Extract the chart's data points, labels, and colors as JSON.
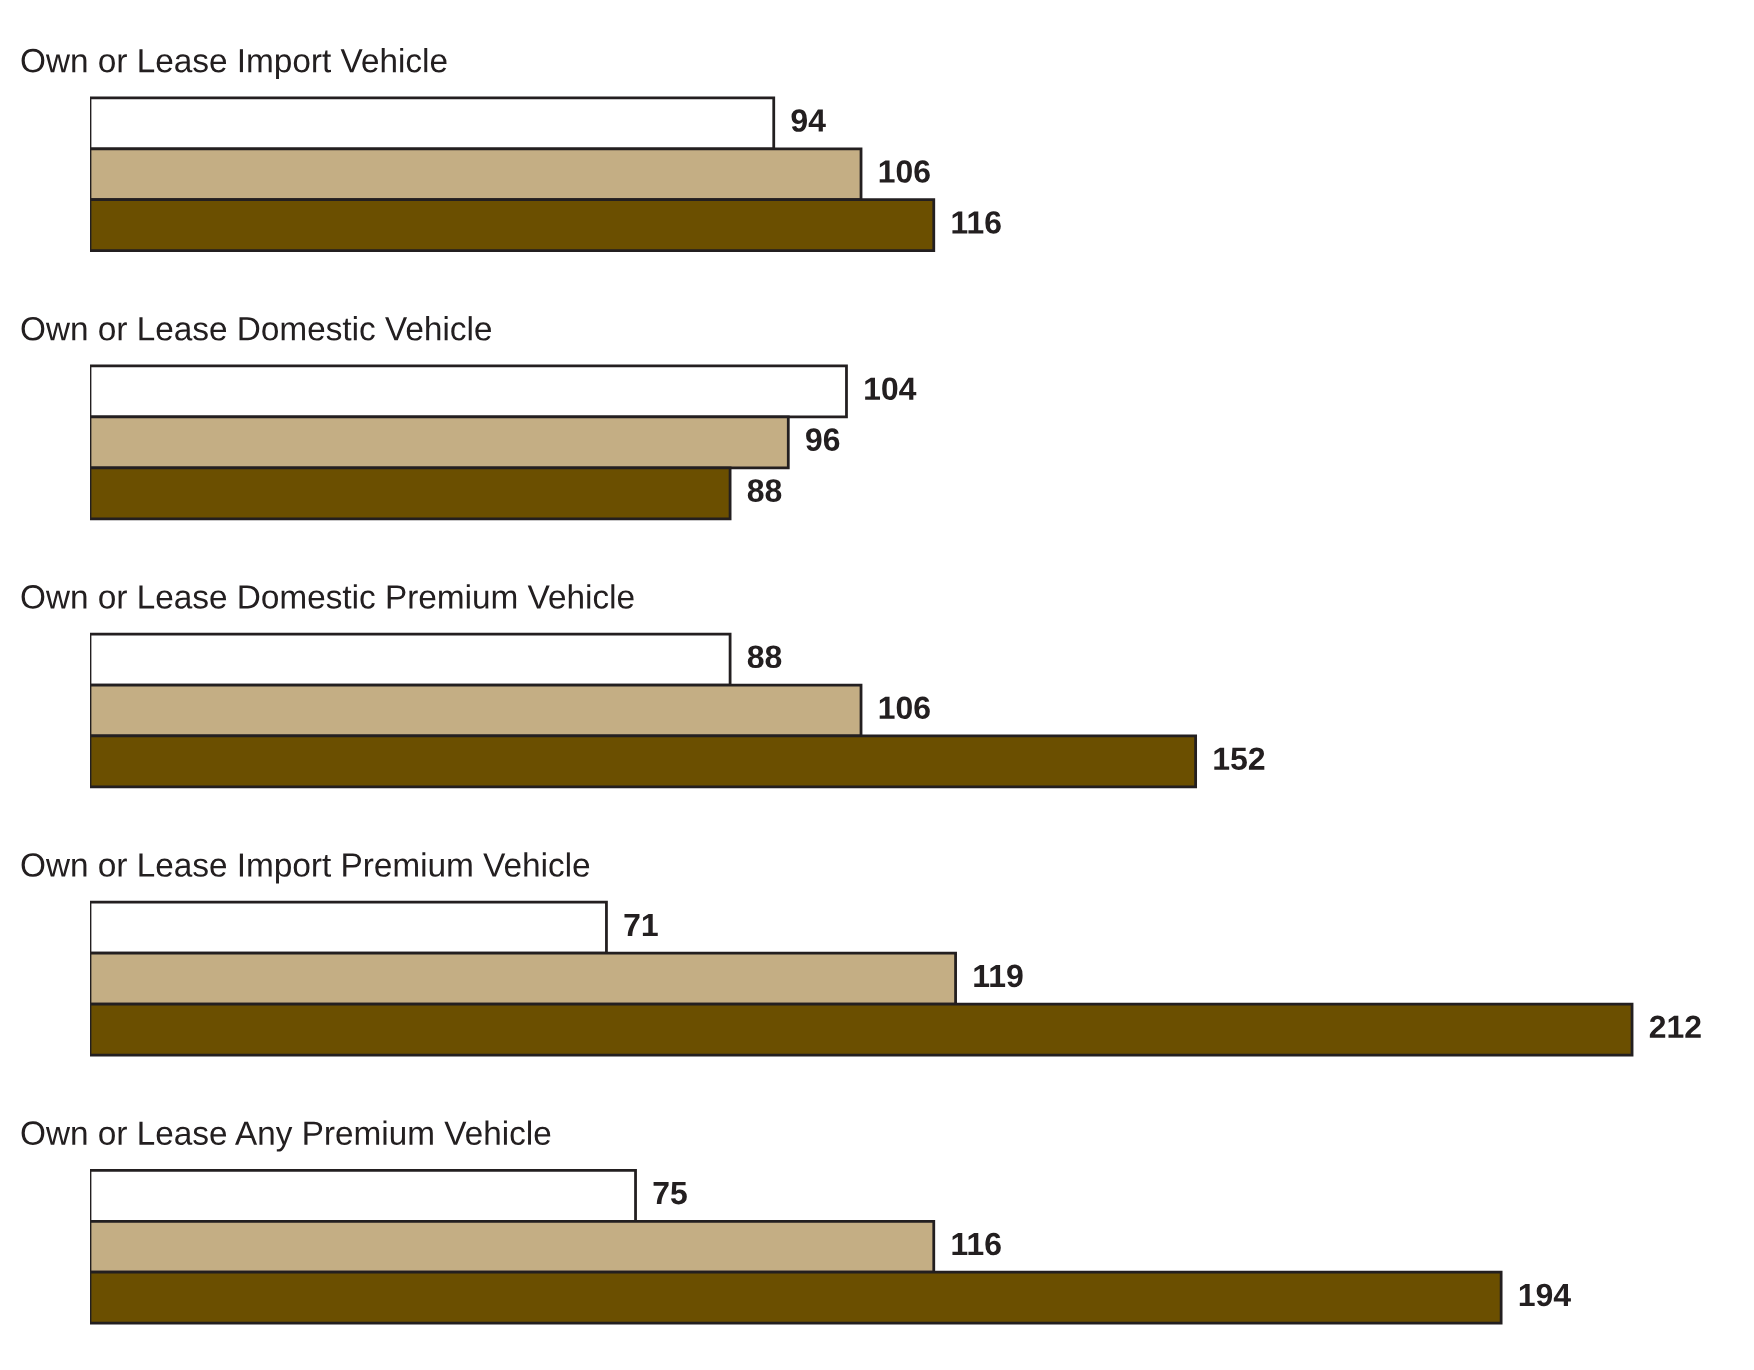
{
  "chart_data": {
    "type": "bar",
    "orientation": "horizontal",
    "categories": [
      "Own or Lease Import Vehicle",
      "Own or Lease Domestic Vehicle",
      "Own or Lease Domestic Premium Vehicle",
      "Own or Lease Import Premium Vehicle",
      "Own or Lease Any Premium Vehicle"
    ],
    "series": [
      {
        "color": "#ffffff",
        "values": [
          94,
          104,
          88,
          71,
          75
        ]
      },
      {
        "color": "#c4ae84",
        "values": [
          106,
          96,
          106,
          119,
          116
        ]
      },
      {
        "color": "#6b4f00",
        "values": [
          116,
          88,
          152,
          212,
          194
        ]
      }
    ],
    "data_labels": true,
    "tick_labels": "y"
  }
}
